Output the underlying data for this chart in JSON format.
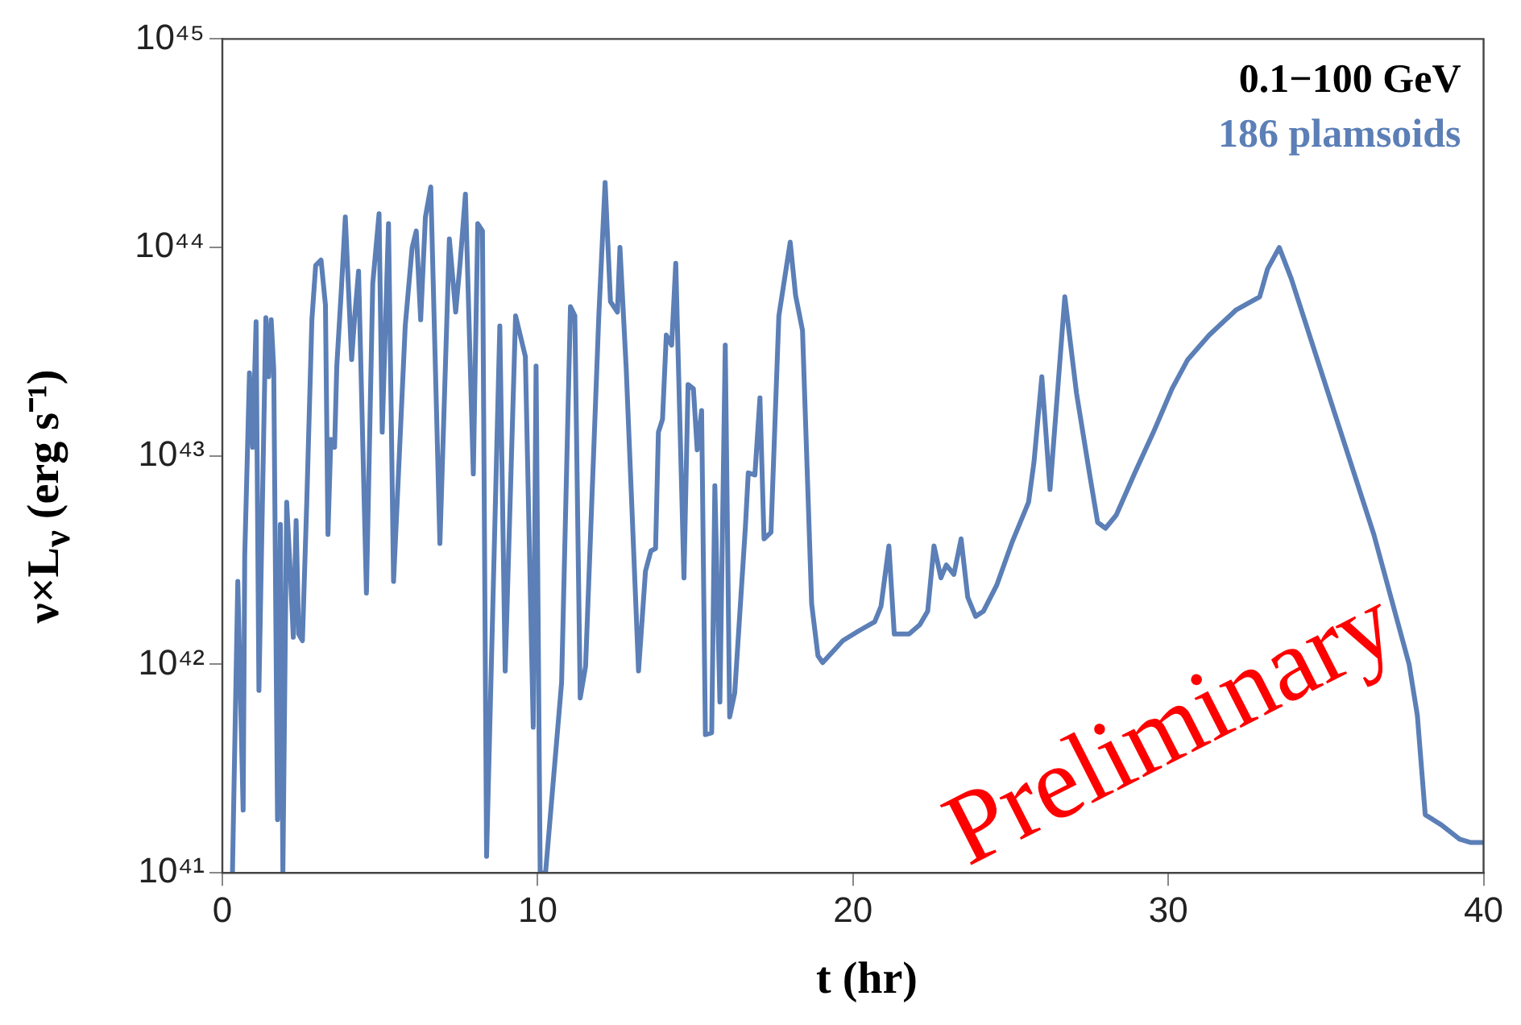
{
  "chart_data": {
    "type": "line",
    "xlabel": "t (hr)",
    "ylabel": "ν×L$_{ν}$ (erg s⁻¹)",
    "legend_title": "0.1−100 GeV",
    "legend": "top right",
    "annotations": [
      "Preliminary"
    ],
    "log": "y",
    "grid": false,
    "marker": "none",
    "line_style": "solid",
    "xlim": [
      0,
      40
    ],
    "xticks": [
      0,
      10,
      20,
      30,
      40
    ],
    "ylim": [
      1e+41,
      1e+45
    ],
    "yticks": [
      {
        "value": 1e+41,
        "label": "10⁴¹"
      },
      {
        "value": 1e+42,
        "label": "10⁴²"
      },
      {
        "value": 1e+43,
        "label": "10⁴³"
      },
      {
        "value": 1e+44,
        "label": "10⁴⁴"
      },
      {
        "value": 1e+45,
        "label": "10⁴⁵"
      }
    ],
    "series": [
      {
        "name": "186 plamsoids",
        "color": "#5b7fb6",
        "x": [
          0.32,
          0.49,
          0.66,
          0.71,
          0.86,
          0.96,
          1.07,
          1.16,
          1.38,
          1.47,
          1.55,
          1.63,
          1.75,
          1.84,
          1.92,
          2.04,
          2.17,
          2.25,
          2.34,
          2.42,
          2.54,
          2.68,
          2.84,
          2.96,
          3.13,
          3.27,
          3.35,
          3.44,
          3.56,
          3.63,
          3.78,
          3.9,
          4.1,
          4.19,
          4.32,
          4.57,
          4.77,
          4.97,
          5.07,
          5.27,
          5.43,
          5.8,
          6.02,
          6.15,
          6.29,
          6.44,
          6.61,
          6.9,
          7.2,
          7.4,
          7.54,
          7.71,
          7.96,
          8.1,
          8.25,
          8.38,
          8.8,
          8.97,
          9.3,
          9.61,
          9.86,
          9.95,
          10.08,
          10.25,
          10.76,
          11.04,
          11.18,
          11.35,
          11.52,
          11.94,
          12.14,
          12.31,
          12.53,
          12.61,
          12.81,
          13.2,
          13.42,
          13.59,
          13.74,
          13.83,
          13.96,
          14.08,
          14.25,
          14.38,
          14.64,
          14.77,
          14.94,
          15.06,
          15.2,
          15.32,
          15.52,
          15.62,
          15.78,
          15.95,
          16.09,
          16.25,
          16.59,
          16.68,
          16.89,
          17.05,
          17.18,
          17.4,
          17.65,
          18.01,
          18.18,
          18.4,
          18.69,
          18.89,
          19.04,
          19.68,
          20.19,
          20.69,
          20.89,
          21.14,
          21.31,
          21.78,
          22.12,
          22.37,
          22.57,
          22.79,
          22.96,
          23.2,
          23.43,
          23.64,
          23.89,
          24.14,
          24.56,
          25.06,
          25.57,
          25.74,
          25.99,
          26.25,
          26.72,
          27.09,
          27.51,
          27.76,
          28.01,
          28.35,
          28.94,
          29.53,
          30.12,
          30.62,
          31.3,
          32.14,
          32.9,
          33.15,
          33.52,
          33.9,
          35.17,
          36.52,
          37.64,
          37.9,
          38.15,
          38.66,
          39.24,
          39.58,
          40.0
        ],
        "values": [
          1e+41,
          2.5e+42,
          2e+41,
          3.3e+42,
          2.5e+43,
          1.1e+43,
          4.4e+43,
          7.5e+41,
          4.6e+43,
          2.4e+43,
          4.5e+43,
          2.6e+43,
          1.8e+41,
          4.7e+42,
          1e+41,
          6e+42,
          2.5e+42,
          1.35e+42,
          4.9e+42,
          1.4e+42,
          1.3e+42,
          6.2e+42,
          4.5e+43,
          8.2e+43,
          8.7e+43,
          5.3e+43,
          4.2e+42,
          1.2e+43,
          1.1e+43,
          2.7e+43,
          6.5e+43,
          1.4e+44,
          2.9e+43,
          4.5e+43,
          7.7e+43,
          2.2e+42,
          6.7e+43,
          1.45e+44,
          1.3e+43,
          1.3e+44,
          2.5e+42,
          4.2e+43,
          1e+44,
          1.2e+44,
          4.5e+43,
          1.4e+44,
          1.95e+44,
          3.8e+42,
          1.1e+44,
          4.9e+43,
          8.4e+43,
          1.8e+44,
          8.2e+42,
          1.3e+44,
          1.2e+44,
          1.2e+41,
          4.2e+43,
          9.3e+41,
          4.7e+43,
          3e+43,
          5e+41,
          2.7e+43,
          1e+41,
          1e+41,
          8.2e+41,
          5.2e+43,
          4.7e+43,
          6.9e+41,
          9.8e+41,
          4.7e+43,
          2.05e+44,
          5.5e+43,
          4.9e+43,
          1e+44,
          2.6e+43,
          9.3e+41,
          2.8e+42,
          3.5e+42,
          3.6e+42,
          1.3e+43,
          1.5e+43,
          3.8e+43,
          3.4e+43,
          8.4e+43,
          2.6e+42,
          2.2e+43,
          2.1e+43,
          1.07e+43,
          1.65e+43,
          4.6e+41,
          4.7e+41,
          7.2e+42,
          6.6e+41,
          3.4e+43,
          5.6e+41,
          7.3e+41,
          4.6e+42,
          8.3e+42,
          8.1e+42,
          1.9e+43,
          4e+42,
          4.3e+42,
          4.7e+43,
          1.06e+44,
          5.9e+43,
          4e+43,
          1.95e+42,
          1.1e+42,
          1.02e+42,
          1.3e+42,
          1.45e+42,
          1.6e+42,
          1.9e+42,
          3.7e+42,
          1.4e+42,
          1.4e+42,
          1.55e+42,
          1.8e+42,
          3.7e+42,
          2.6e+42,
          3e+42,
          2.7e+42,
          4e+42,
          2.1e+42,
          1.7e+42,
          1.8e+42,
          2.4e+42,
          3.9e+42,
          6e+42,
          9.3e+42,
          2.4e+43,
          6.9e+42,
          5.8e+43,
          2e+43,
          8.1e+42,
          4.8e+42,
          4.5e+42,
          5.2e+42,
          8.3e+42,
          1.3e+43,
          2.1e+43,
          2.9e+43,
          3.8e+43,
          5e+43,
          5.8e+43,
          7.9e+43,
          1e+44,
          7.1e+43,
          1.8e+43,
          4.2e+42,
          1e+42,
          5.7e+41,
          1.9e+41,
          1.7e+41,
          1.45e+41,
          1.4e+41,
          1.4e+41
        ]
      }
    ]
  }
}
